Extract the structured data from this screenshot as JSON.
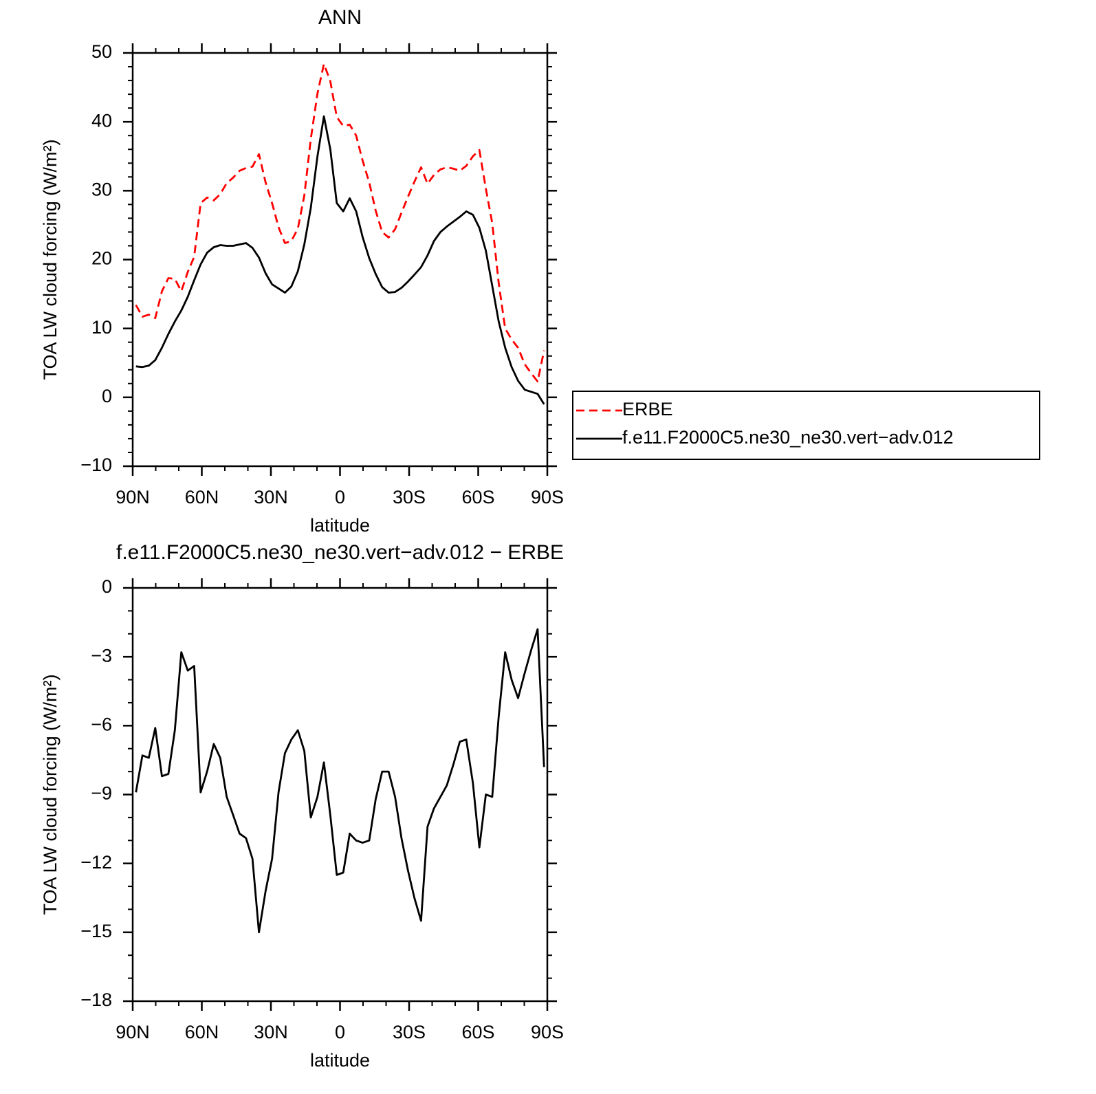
{
  "chart_data": [
    {
      "type": "line",
      "title": "ANN",
      "xlabel": "latitude",
      "ylabel": "TOA LW cloud forcing (W/m²)",
      "x": [
        88.6,
        85.8,
        83.0,
        80.2,
        77.3,
        74.5,
        71.7,
        68.9,
        66.1,
        63.3,
        60.5,
        57.7,
        54.8,
        52.0,
        49.2,
        46.4,
        43.6,
        40.8,
        38.0,
        35.2,
        32.3,
        29.5,
        26.7,
        23.9,
        21.1,
        18.3,
        15.5,
        12.7,
        9.8,
        7.0,
        4.2,
        1.4,
        -1.4,
        -4.2,
        -7.0,
        -9.8,
        -12.7,
        -15.5,
        -18.3,
        -21.1,
        -23.9,
        -26.7,
        -29.5,
        -32.3,
        -35.2,
        -38.0,
        -40.8,
        -43.6,
        -46.4,
        -49.2,
        -52.0,
        -54.8,
        -57.7,
        -60.5,
        -63.3,
        -66.1,
        -68.9,
        -71.7,
        -74.5,
        -77.3,
        -80.2,
        -83.0,
        -85.8,
        -88.6
      ],
      "xlim": [
        90,
        -90
      ],
      "xticks": [
        {
          "value": 90,
          "label": "90N"
        },
        {
          "value": 60,
          "label": "60N"
        },
        {
          "value": 30,
          "label": "30N"
        },
        0,
        {
          "value": -30,
          "label": "30S"
        },
        {
          "value": -60,
          "label": "60S"
        },
        {
          "value": -90,
          "label": "90S"
        }
      ],
      "ylim": [
        -10,
        50
      ],
      "yticks": [
        {
          "value": -10,
          "label": "−10"
        },
        0,
        10,
        20,
        30,
        40,
        50
      ],
      "legend": "right",
      "series": [
        {
          "name": "ERBE",
          "color": "#ff0000",
          "dash": "dashed",
          "values": [
            13.4,
            11.7,
            12.0,
            11.5,
            15.4,
            17.3,
            17.2,
            15.4,
            18.2,
            20.4,
            28.2,
            29.0,
            28.6,
            29.5,
            31.1,
            31.9,
            32.9,
            33.3,
            33.5,
            35.3,
            31.2,
            28.2,
            24.7,
            22.4,
            22.7,
            24.5,
            29.3,
            37.5,
            44.1,
            48.4,
            45.9,
            40.7,
            39.4,
            39.6,
            38.0,
            34.4,
            31.2,
            27.1,
            24.0,
            23.2,
            24.4,
            26.8,
            29.1,
            31.3,
            33.4,
            31.0,
            32.3,
            33.1,
            33.4,
            33.2,
            32.9,
            33.6,
            35.0,
            35.9,
            30.3,
            25.3,
            16.6,
            10.0,
            8.4,
            7.2,
            4.8,
            3.5,
            2.3,
            6.8
          ]
        },
        {
          "name": "f.e11.F2000C5.ne30_ne30.vert−adv.012",
          "color": "#000000",
          "dash": "solid",
          "values": [
            4.5,
            4.4,
            4.6,
            5.4,
            7.2,
            9.2,
            11.0,
            12.6,
            14.6,
            17.0,
            19.3,
            21.0,
            21.8,
            22.1,
            22.0,
            22.0,
            22.2,
            22.4,
            21.7,
            20.3,
            18.0,
            16.4,
            15.8,
            15.2,
            16.1,
            18.3,
            22.2,
            27.5,
            35.0,
            40.8,
            36.0,
            28.2,
            27.0,
            28.9,
            27.0,
            23.3,
            20.2,
            17.9,
            16.0,
            15.2,
            15.3,
            15.9,
            16.8,
            17.8,
            18.9,
            20.6,
            22.7,
            24.0,
            24.8,
            25.5,
            26.2,
            27.0,
            26.5,
            24.6,
            21.3,
            16.2,
            11.0,
            7.2,
            4.4,
            2.4,
            1.1,
            0.8,
            0.5,
            -1.0
          ]
        }
      ]
    },
    {
      "type": "line",
      "title": "f.e11.F2000C5.ne30_ne30.vert−adv.012 − ERBE",
      "xlabel": "latitude",
      "ylabel": "TOA LW cloud forcing (W/m²)",
      "x": [
        88.6,
        85.8,
        83.0,
        80.2,
        77.3,
        74.5,
        71.7,
        68.9,
        66.1,
        63.3,
        60.5,
        57.7,
        54.8,
        52.0,
        49.2,
        46.4,
        43.6,
        40.8,
        38.0,
        35.2,
        32.3,
        29.5,
        26.7,
        23.9,
        21.1,
        18.3,
        15.5,
        12.7,
        9.8,
        7.0,
        4.2,
        1.4,
        -1.4,
        -4.2,
        -7.0,
        -9.8,
        -12.7,
        -15.5,
        -18.3,
        -21.1,
        -23.9,
        -26.7,
        -29.5,
        -32.3,
        -35.2,
        -38.0,
        -40.8,
        -43.6,
        -46.4,
        -49.2,
        -52.0,
        -54.8,
        -57.7,
        -60.5,
        -63.3,
        -66.1,
        -68.9,
        -71.7,
        -74.5,
        -77.3,
        -80.2,
        -83.0,
        -85.8,
        -88.6
      ],
      "xlim": [
        90,
        -90
      ],
      "xticks": [
        {
          "value": 90,
          "label": "90N"
        },
        {
          "value": 60,
          "label": "60N"
        },
        {
          "value": 30,
          "label": "30N"
        },
        0,
        {
          "value": -30,
          "label": "30S"
        },
        {
          "value": -60,
          "label": "60S"
        },
        {
          "value": -90,
          "label": "90S"
        }
      ],
      "ylim": [
        -18,
        0
      ],
      "yticks": [
        {
          "value": -18,
          "label": "−18"
        },
        {
          "value": -15,
          "label": "−15"
        },
        {
          "value": -12,
          "label": "−12"
        },
        {
          "value": -9,
          "label": "−9"
        },
        {
          "value": -6,
          "label": "−6"
        },
        {
          "value": -3,
          "label": "−3"
        },
        0
      ],
      "series": [
        {
          "color": "#000000",
          "dash": "solid",
          "values": [
            -8.9,
            -7.3,
            -7.4,
            -6.1,
            -8.2,
            -8.1,
            -6.2,
            -2.8,
            -3.6,
            -3.4,
            -8.9,
            -8.0,
            -6.8,
            -7.4,
            -9.1,
            -9.9,
            -10.7,
            -10.9,
            -11.8,
            -15.0,
            -13.2,
            -11.8,
            -8.9,
            -7.2,
            -6.6,
            -6.2,
            -7.1,
            -10.0,
            -9.1,
            -7.6,
            -9.9,
            -12.5,
            -12.4,
            -10.7,
            -11.0,
            -11.1,
            -11.0,
            -9.2,
            -8.0,
            -8.0,
            -9.1,
            -10.9,
            -12.3,
            -13.5,
            -14.5,
            -10.4,
            -9.6,
            -9.1,
            -8.6,
            -7.7,
            -6.7,
            -6.6,
            -8.5,
            -11.3,
            -9.0,
            -9.1,
            -5.6,
            -2.8,
            -4.0,
            -4.8,
            -3.7,
            -2.7,
            -1.8,
            -7.8
          ]
        }
      ]
    }
  ]
}
